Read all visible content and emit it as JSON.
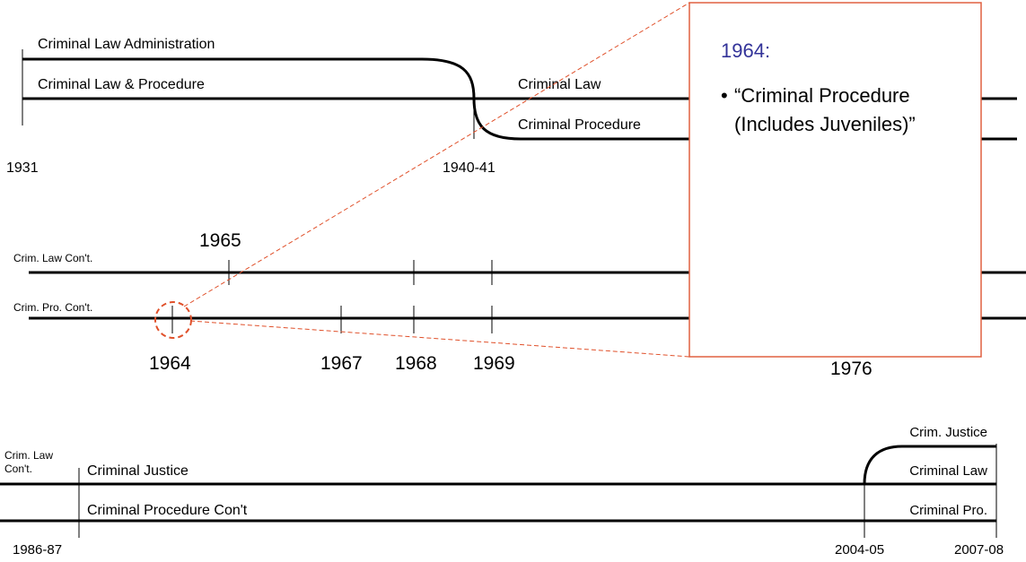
{
  "top": {
    "lines": [
      "Criminal Law Administration",
      "Criminal Law & Procedure",
      "Criminal Law",
      "Criminal Procedure"
    ],
    "years": [
      "1931",
      "1940-41"
    ]
  },
  "middle": {
    "lines": [
      "Crim. Law Con't.",
      "Crim. Pro. Con't."
    ],
    "years": [
      "1965",
      "1964",
      "1967",
      "1968",
      "1969",
      "1976"
    ]
  },
  "callout": {
    "title": "1964:",
    "bullet": "•",
    "text_lines": [
      "“Criminal Procedure",
      "(Includes Juveniles)”"
    ]
  },
  "bottom": {
    "lines": [
      "Crim. Law",
      "Con't.",
      "Criminal Justice",
      "Criminal Procedure Con't",
      "Crim. Justice",
      "Criminal Law",
      "Criminal Pro."
    ],
    "years": [
      "1986-87",
      "2004-05",
      "2007-08"
    ]
  }
}
